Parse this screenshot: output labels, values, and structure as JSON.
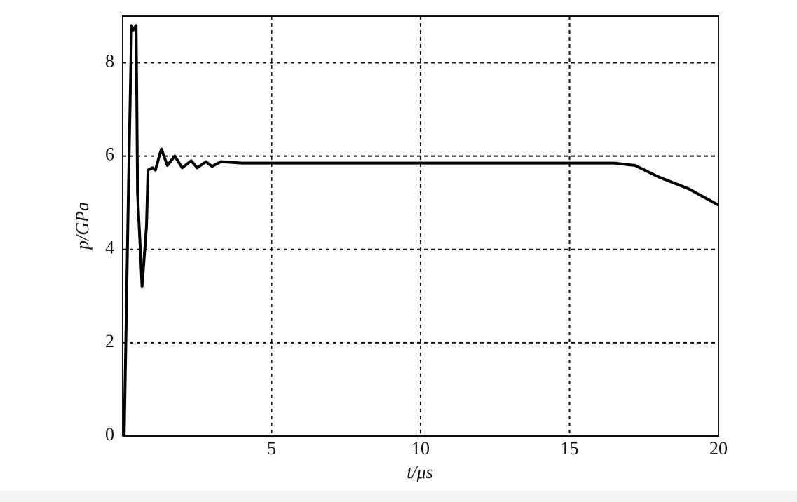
{
  "chart_data": {
    "type": "line",
    "x_label": "t/μs",
    "y_label": "p/GPa",
    "x": [
      0,
      0.05,
      0.1,
      0.2,
      0.3,
      0.35,
      0.45,
      0.47,
      0.5,
      0.6,
      0.65,
      0.8,
      0.85,
      1.0,
      1.1,
      1.25,
      1.3,
      1.5,
      1.75,
      2.0,
      2.3,
      2.5,
      2.8,
      3.0,
      3.3,
      4,
      6,
      8,
      10,
      12,
      14,
      15,
      16.5,
      17.2,
      18,
      19,
      20
    ],
    "series": [
      {
        "name": "p",
        "color": "#000000",
        "values": [
          0,
          0,
          1.8,
          5.5,
          8.8,
          8.7,
          8.8,
          7.5,
          5.2,
          3.9,
          3.2,
          4.5,
          5.7,
          5.75,
          5.7,
          6.05,
          6.15,
          5.8,
          6.0,
          5.75,
          5.9,
          5.75,
          5.88,
          5.78,
          5.88,
          5.85,
          5.85,
          5.85,
          5.85,
          5.85,
          5.85,
          5.85,
          5.85,
          5.8,
          5.55,
          5.3,
          4.95
        ]
      }
    ],
    "xlim": [
      0,
      20
    ],
    "ylim": [
      0,
      9
    ],
    "xticks": [
      5,
      10,
      15,
      20
    ],
    "yticks": [
      0,
      2,
      4,
      6,
      8
    ],
    "grid": true
  }
}
